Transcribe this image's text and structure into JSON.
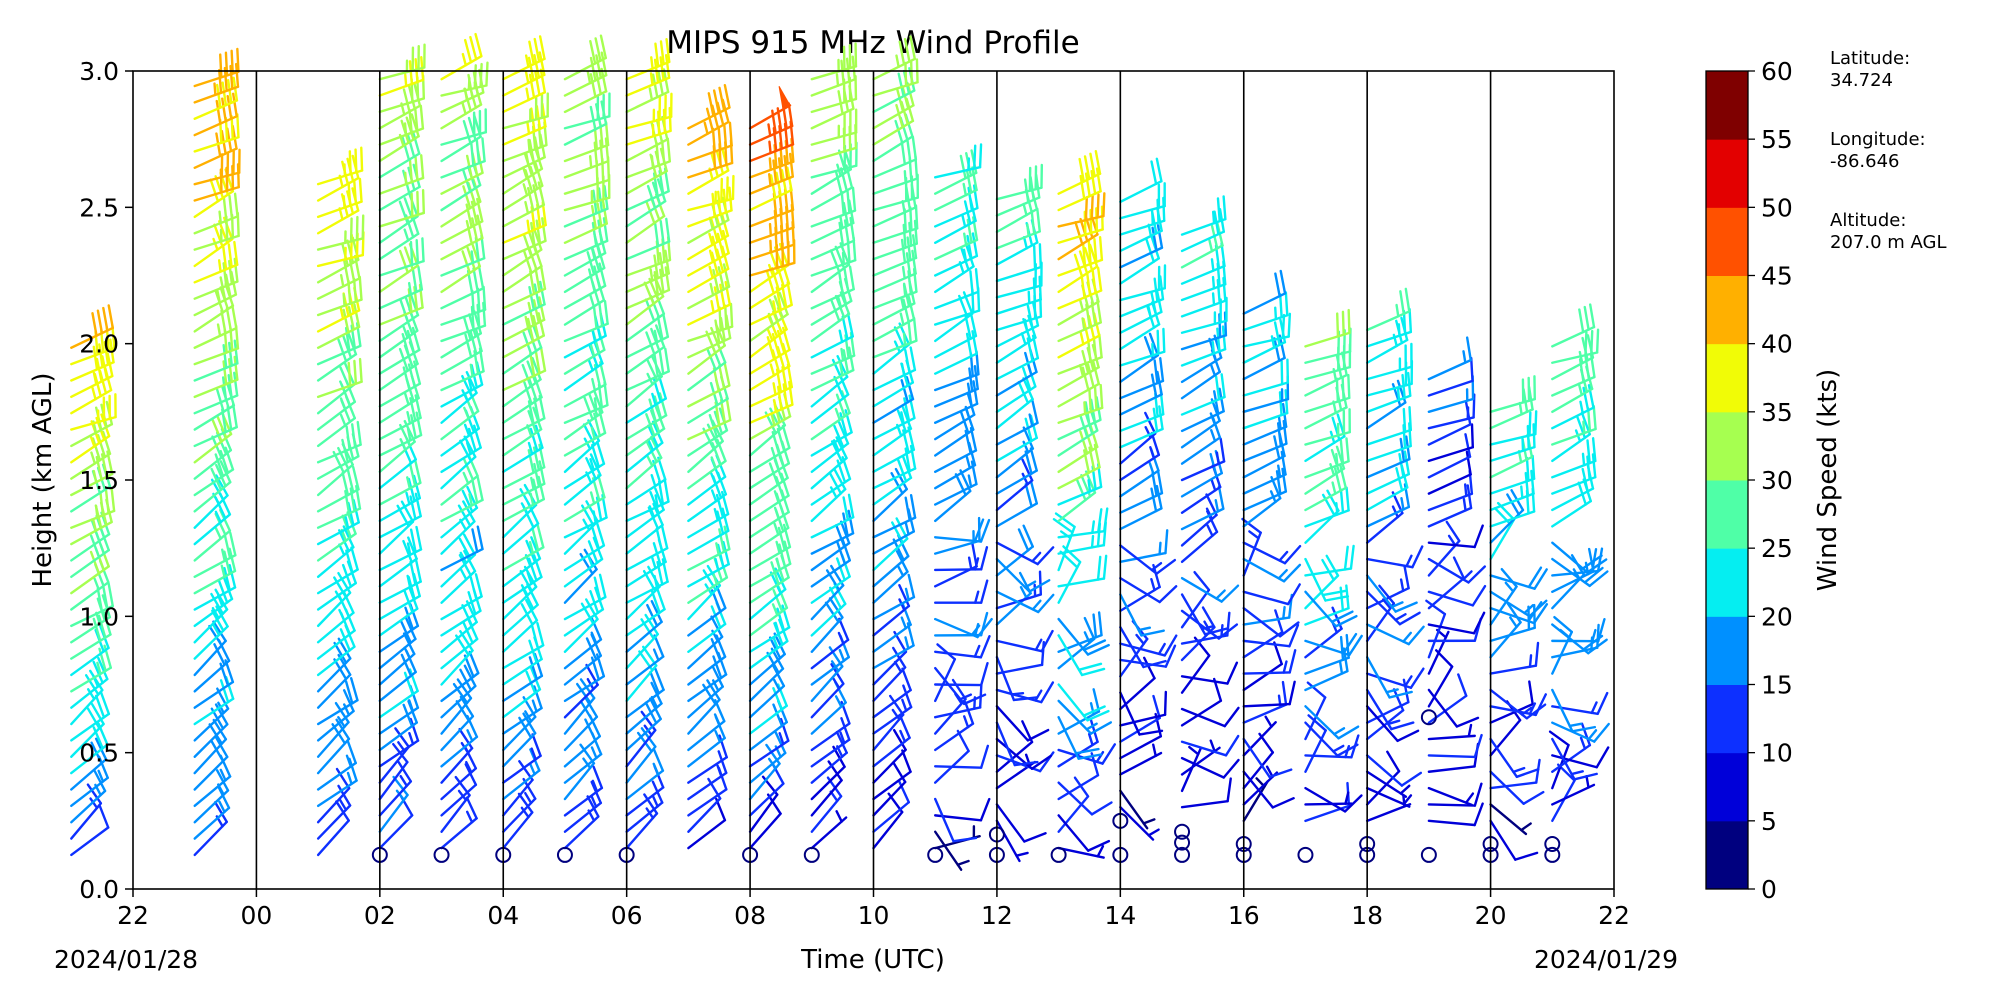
{
  "chart_data": {
    "type": "wind_barb_profile",
    "title": "MIPS 915 MHz Wind Profile",
    "xlabel": "Time (UTC)",
    "ylabel": "Height (km AGL)",
    "xlim_hours": [
      -2,
      22
    ],
    "ylim": [
      0.0,
      3.0
    ],
    "x_tick_labels": [
      "22",
      "00",
      "02",
      "04",
      "06",
      "08",
      "10",
      "12",
      "14",
      "16",
      "18",
      "20",
      "22"
    ],
    "y_tick_labels": [
      "0.0",
      "0.5",
      "1.0",
      "1.5",
      "2.0",
      "2.5",
      "3.0"
    ],
    "start_date": "2024/01/28",
    "end_date": "2024/01/29",
    "colorbar": {
      "label": "Wind Speed (kts)",
      "bounds": [
        0,
        5,
        10,
        15,
        20,
        25,
        30,
        35,
        40,
        45,
        50,
        55,
        60
      ],
      "tick_labels": [
        "0",
        "5",
        "10",
        "15",
        "20",
        "25",
        "30",
        "35",
        "40",
        "45",
        "50",
        "55",
        "60"
      ],
      "colors": [
        "#00007f",
        "#0000d9",
        "#0d30ff",
        "#0090ff",
        "#05eef1",
        "#4fffa7",
        "#a6ff50",
        "#f1fc06",
        "#ffb000",
        "#ff5100",
        "#e30000",
        "#7f0000"
      ]
    },
    "profiles": [
      {
        "time": "21:00",
        "range_km": [
          0.125,
          2.0
        ],
        "low_kts": 13,
        "high_kts": 40,
        "calm_km": []
      },
      {
        "time": "23:00",
        "range_km": [
          0.125,
          3.0
        ],
        "low_kts": 12,
        "high_kts": 42,
        "calm_km": []
      },
      {
        "time": "01:00",
        "range_km": [
          0.125,
          2.6
        ],
        "low_kts": 10,
        "high_kts": 38,
        "calm_km": []
      },
      {
        "time": "02:00",
        "range_km": [
          0.15,
          3.0
        ],
        "low_kts": 12,
        "high_kts": 34,
        "calm_km": [
          0.125
        ]
      },
      {
        "time": "03:00",
        "range_km": [
          0.15,
          3.0
        ],
        "low_kts": 12,
        "high_kts": 34,
        "calm_km": [
          0.125
        ]
      },
      {
        "time": "04:00",
        "range_km": [
          0.15,
          3.0
        ],
        "low_kts": 12,
        "high_kts": 38,
        "calm_km": [
          0.125
        ]
      },
      {
        "time": "05:00",
        "range_km": [
          0.15,
          3.0
        ],
        "low_kts": 12,
        "high_kts": 34,
        "calm_km": [
          0.125
        ]
      },
      {
        "time": "06:00",
        "range_km": [
          0.15,
          3.0
        ],
        "low_kts": 12,
        "high_kts": 36,
        "calm_km": [
          0.125
        ]
      },
      {
        "time": "07:00",
        "range_km": [
          0.15,
          2.8
        ],
        "low_kts": 8,
        "high_kts": 42,
        "calm_km": []
      },
      {
        "time": "08:00",
        "range_km": [
          0.15,
          2.8
        ],
        "low_kts": 10,
        "high_kts": 46,
        "calm_km": [
          0.125
        ]
      },
      {
        "time": "09:00",
        "range_km": [
          0.15,
          3.0
        ],
        "low_kts": 10,
        "high_kts": 32,
        "calm_km": [
          0.125
        ]
      },
      {
        "time": "10:00",
        "range_km": [
          0.15,
          3.0
        ],
        "low_kts": 8,
        "high_kts": 32,
        "calm_km": []
      },
      {
        "time": "11:00",
        "range_km": [
          0.15,
          2.65
        ],
        "low_kts": 6,
        "high_kts": 26,
        "calm_km": [
          0.125
        ]
      },
      {
        "time": "12:00",
        "range_km": [
          0.25,
          2.55
        ],
        "low_kts": 6,
        "high_kts": 26,
        "calm_km": [
          0.125,
          0.2
        ]
      },
      {
        "time": "13:00",
        "range_km": [
          0.15,
          2.55
        ],
        "low_kts": 6,
        "high_kts": 42,
        "calm_km": [
          0.125
        ]
      },
      {
        "time": "14:00",
        "range_km": [
          0.3,
          2.55
        ],
        "low_kts": 6,
        "high_kts": 24,
        "calm_km": [
          0.125,
          0.25
        ]
      },
      {
        "time": "15:00",
        "range_km": [
          0.3,
          2.4
        ],
        "low_kts": 6,
        "high_kts": 24,
        "calm_km": [
          0.125,
          0.17,
          0.21
        ]
      },
      {
        "time": "16:00",
        "range_km": [
          0.25,
          2.15
        ],
        "low_kts": 6,
        "high_kts": 22,
        "calm_km": [
          0.125,
          0.165
        ]
      },
      {
        "time": "17:00",
        "range_km": [
          0.25,
          2.0
        ],
        "low_kts": 8,
        "high_kts": 30,
        "calm_km": [
          0.125
        ]
      },
      {
        "time": "18:00",
        "range_km": [
          0.25,
          2.1
        ],
        "low_kts": 6,
        "high_kts": 24,
        "calm_km": [
          0.125,
          0.165
        ]
      },
      {
        "time": "19:00",
        "range_km": [
          0.25,
          1.9
        ],
        "low_kts": 6,
        "high_kts": 14,
        "calm_km": [
          0.125,
          0.63
        ]
      },
      {
        "time": "20:00",
        "range_km": [
          0.25,
          1.75
        ],
        "low_kts": 6,
        "high_kts": 26,
        "calm_km": [
          0.125,
          0.165
        ]
      },
      {
        "time": "21:00",
        "range_km": [
          0.25,
          2.0
        ],
        "low_kts": 8,
        "high_kts": 28,
        "calm_km": [
          0.125,
          0.165
        ]
      }
    ]
  },
  "metadata": {
    "latitude_label": "Latitude:",
    "latitude_value": "34.724",
    "longitude_label": "Longitude:",
    "longitude_value": "-86.646",
    "altitude_label": "Altitude:",
    "altitude_value": "207.0 m AGL"
  }
}
